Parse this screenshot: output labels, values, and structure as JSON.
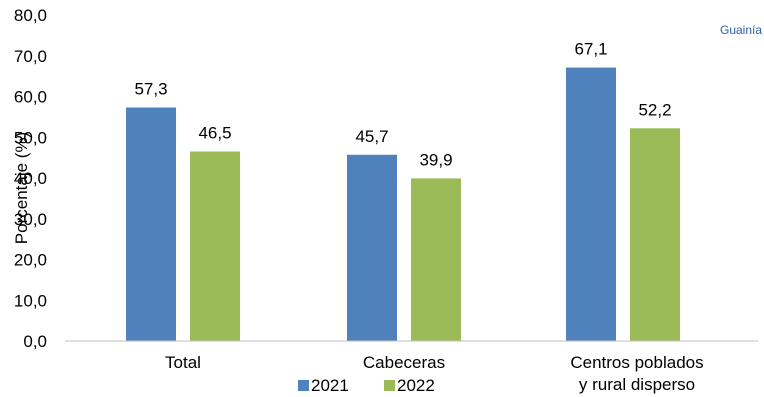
{
  "corner_label": "Guainía",
  "chart_data": {
    "type": "bar",
    "title": "",
    "ylabel": "Porcentaje (%)",
    "xlabel": "",
    "ylim": [
      0,
      80
    ],
    "yticks": [
      "0,0",
      "10,0",
      "20,0",
      "30,0",
      "40,0",
      "50,0",
      "60,0",
      "70,0",
      "80,0"
    ],
    "categories": [
      [
        "Total"
      ],
      [
        "Cabeceras"
      ],
      [
        "Centros poblados",
        "y rural disperso"
      ]
    ],
    "series": [
      {
        "name": "2021",
        "color": "#4f81bd",
        "values": [
          57.3,
          45.7,
          67.1
        ],
        "labels": [
          "57,3",
          "45,7",
          "67,1"
        ]
      },
      {
        "name": "2022",
        "color": "#9bbb59",
        "values": [
          46.5,
          39.9,
          52.2
        ],
        "labels": [
          "46,5",
          "39,9",
          "52,2"
        ]
      }
    ],
    "legend_position": "bottom"
  }
}
